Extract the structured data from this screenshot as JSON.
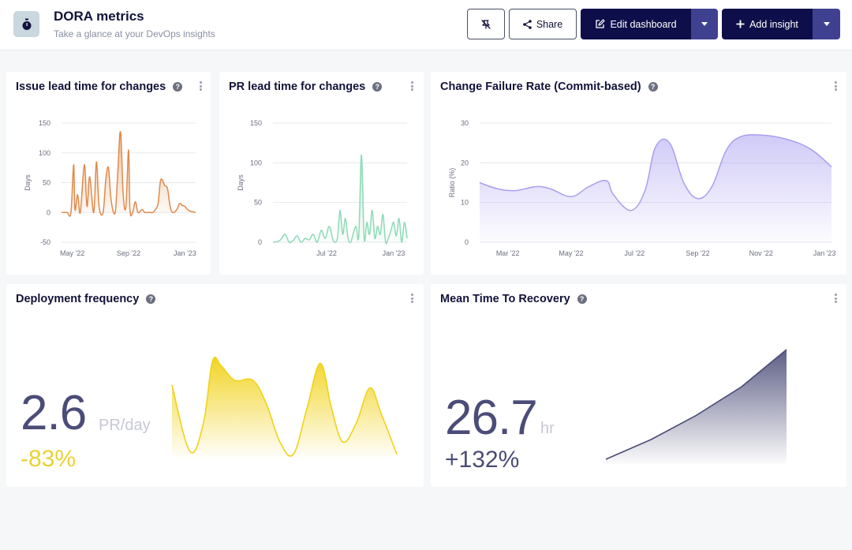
{
  "header": {
    "title": "DORA metrics",
    "subtitle": "Take a glance at your DevOps insights",
    "icon": "stopwatch-icon",
    "buttons": {
      "share_label": "Share",
      "edit_label": "Edit dashboard",
      "add_label": "Add insight"
    }
  },
  "colors": {
    "primary": "#0e0f4a",
    "issue_lead_time": "#e08a4a",
    "pr_lead_time": "#8ed9b7",
    "cfr": "#a99ff0",
    "deploy": "#f1d21a",
    "mttr": "#4b4c78"
  },
  "cards": {
    "issue_lead_time": {
      "title": "Issue lead time for changes"
    },
    "pr_lead_time": {
      "title": "PR lead time for changes"
    },
    "cfr": {
      "title": "Change Failure Rate (Commit-based)"
    },
    "deploy": {
      "title": "Deployment frequency",
      "value": "2.6",
      "unit": "PR/day",
      "change": "-83%"
    },
    "mttr": {
      "title": "Mean Time To Recovery",
      "value": "26.7",
      "unit": "hr",
      "change": "+132%"
    }
  },
  "chart_data": [
    {
      "id": "issue_lead_time",
      "type": "area",
      "ylabel": "Days",
      "ylim": [
        -50,
        150
      ],
      "yticks": [
        150,
        100,
        50,
        0,
        -50
      ],
      "xticks": [
        "May '22",
        "Sep '22",
        "Jan '23"
      ],
      "x": [
        0,
        0.04,
        0.07,
        0.09,
        0.1,
        0.12,
        0.14,
        0.17,
        0.19,
        0.21,
        0.24,
        0.26,
        0.28,
        0.31,
        0.33,
        0.35,
        0.37,
        0.4,
        0.42,
        0.44,
        0.46,
        0.48,
        0.5,
        0.51,
        0.53,
        0.55,
        0.57,
        0.6,
        0.62,
        0.64,
        0.66,
        0.68,
        0.7,
        0.72,
        0.74,
        0.77,
        0.79,
        0.81,
        0.83,
        0.86,
        0.88,
        0.9,
        0.92,
        0.94,
        0.96,
        0.98,
        1
      ],
      "values": [
        0,
        0,
        0,
        80,
        5,
        30,
        0,
        80,
        10,
        60,
        0,
        85,
        10,
        0,
        55,
        75,
        20,
        0,
        70,
        135,
        30,
        10,
        105,
        5,
        0,
        18,
        0,
        5,
        0,
        0,
        0,
        0,
        5,
        15,
        55,
        45,
        40,
        10,
        0,
        5,
        15,
        12,
        10,
        5,
        2,
        1,
        0
      ],
      "grid": true
    },
    {
      "id": "pr_lead_time",
      "type": "area",
      "ylabel": "Days",
      "ylim": [
        0,
        150
      ],
      "yticks": [
        150,
        100,
        50,
        0
      ],
      "xticks": [
        "Jul '22",
        "Jan '23"
      ],
      "x": [
        0,
        0.05,
        0.09,
        0.12,
        0.15,
        0.18,
        0.21,
        0.24,
        0.27,
        0.3,
        0.33,
        0.36,
        0.39,
        0.42,
        0.45,
        0.48,
        0.5,
        0.52,
        0.54,
        0.56,
        0.58,
        0.6,
        0.62,
        0.64,
        0.66,
        0.68,
        0.7,
        0.72,
        0.74,
        0.76,
        0.78,
        0.8,
        0.82,
        0.84,
        0.86,
        0.88,
        0.9,
        0.92,
        0.94,
        0.96,
        0.98,
        1
      ],
      "values": [
        0,
        2,
        10,
        0,
        2,
        8,
        0,
        5,
        3,
        10,
        0,
        15,
        5,
        20,
        2,
        5,
        40,
        10,
        30,
        5,
        0,
        12,
        20,
        8,
        110,
        5,
        25,
        10,
        40,
        5,
        20,
        10,
        35,
        0,
        5,
        15,
        25,
        8,
        30,
        0,
        25,
        5
      ],
      "grid": true
    },
    {
      "id": "cfr",
      "type": "area",
      "ylabel": "Ratio (%)",
      "ylim": [
        0,
        30
      ],
      "yticks": [
        30,
        20,
        10,
        0
      ],
      "xticks": [
        "Mar '22",
        "May '22",
        "Jul '22",
        "Sep '22",
        "Nov '22",
        "Jan '23"
      ],
      "x": [
        0,
        0.05,
        0.1,
        0.16,
        0.2,
        0.26,
        0.31,
        0.36,
        0.38,
        0.43,
        0.47,
        0.5,
        0.54,
        0.58,
        0.62,
        0.66,
        0.7,
        0.74,
        0.8,
        0.87,
        0.94,
        1
      ],
      "values": [
        15,
        13.5,
        13,
        14,
        13.5,
        11.5,
        14,
        15.5,
        12,
        8,
        13,
        24,
        25,
        15,
        11,
        14,
        23,
        26.5,
        27,
        26,
        23.5,
        19
      ],
      "grid": true
    },
    {
      "id": "deploy",
      "type": "area",
      "sparkline": true,
      "x": [
        0,
        0.08,
        0.14,
        0.18,
        0.22,
        0.28,
        0.36,
        0.42,
        0.48,
        0.54,
        0.6,
        0.66,
        0.71,
        0.76,
        0.82,
        0.88,
        0.93,
        1
      ],
      "values": [
        0.75,
        0.05,
        0.35,
        1.0,
        0.95,
        0.8,
        0.8,
        0.55,
        0.15,
        0.02,
        0.5,
        0.98,
        0.5,
        0.15,
        0.35,
        0.72,
        0.45,
        0.02
      ]
    },
    {
      "id": "mttr",
      "type": "area",
      "sparkline": true,
      "x": [
        0,
        0.25,
        0.5,
        0.75,
        1
      ],
      "values": [
        0,
        0.18,
        0.4,
        0.66,
        1
      ]
    }
  ]
}
